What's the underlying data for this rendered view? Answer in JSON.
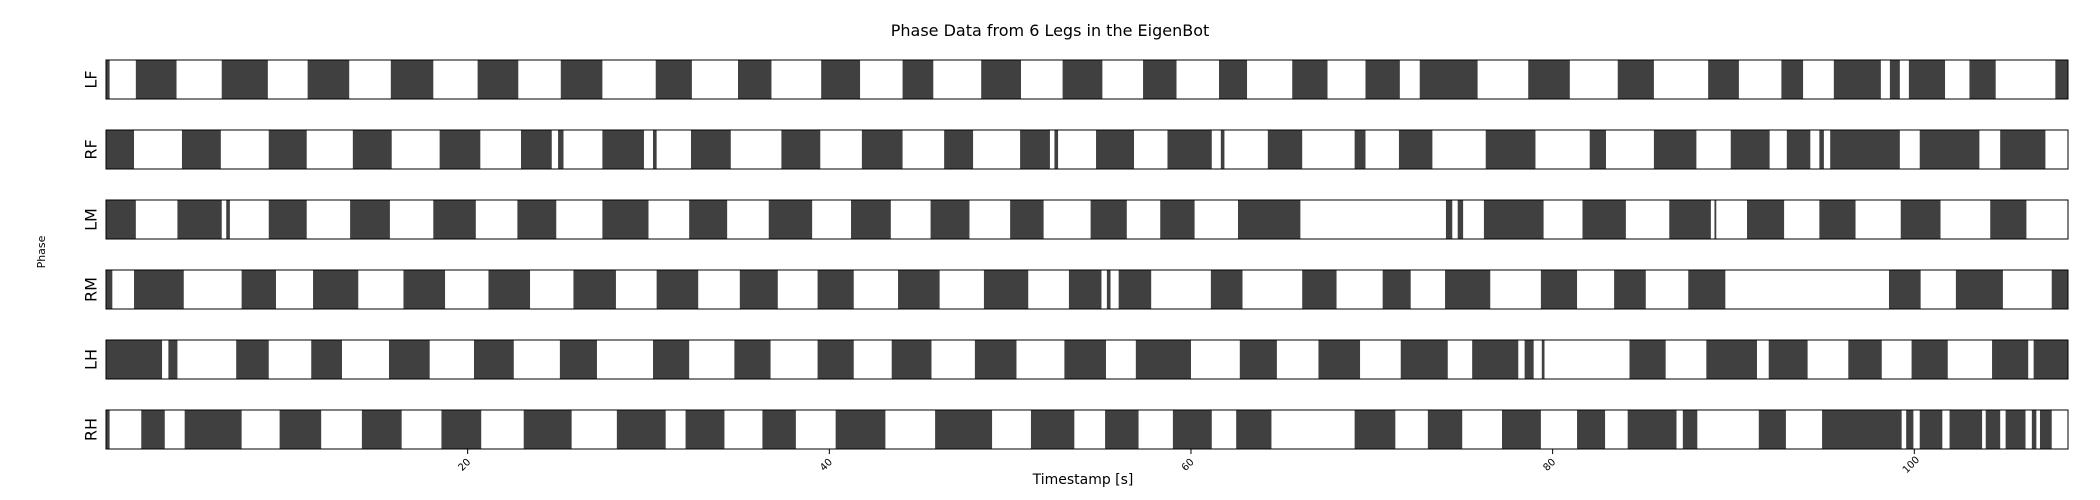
{
  "chart_data": {
    "type": "broken_barh",
    "title": "Phase Data from 6 Legs in the EigenBot",
    "xlabel": "Timestamp [s]",
    "ylabel": "Phase",
    "xlim": [
      0,
      108.5
    ],
    "x_ticks": [
      20,
      40,
      60,
      80,
      100
    ],
    "x_tick_labels": [
      "20",
      "40",
      "60",
      "80",
      "100"
    ],
    "stance_color": "#404040",
    "swing_color": "#ffffff",
    "rows": [
      {
        "label": "LF",
        "stance": [
          [
            0,
            0.2
          ],
          [
            1.65,
            3.9
          ],
          [
            6.4,
            8.95
          ],
          [
            11.15,
            13.45
          ],
          [
            15.75,
            18.1
          ],
          [
            20.55,
            22.8
          ],
          [
            25.15,
            27.45
          ],
          [
            30.4,
            32.4
          ],
          [
            34.95,
            36.8
          ],
          [
            39.55,
            41.7
          ],
          [
            44.05,
            45.75
          ],
          [
            48.4,
            50.6
          ],
          [
            52.9,
            55.1
          ],
          [
            57.35,
            59.2
          ],
          [
            61.55,
            63.1
          ],
          [
            65.6,
            67.55
          ],
          [
            69.65,
            71.55
          ],
          [
            72.65,
            75.85
          ],
          [
            78.65,
            80.95
          ],
          [
            83.6,
            85.6
          ],
          [
            88.6,
            90.3
          ],
          [
            92.65,
            93.85
          ],
          [
            95.55,
            98.15
          ],
          [
            98.65,
            99.2
          ],
          [
            99.7,
            101.7
          ],
          [
            103.05,
            104.5
          ],
          [
            107.8,
            108.5
          ]
        ]
      },
      {
        "label": "RF",
        "stance": [
          [
            0,
            1.55
          ],
          [
            4.2,
            6.35
          ],
          [
            9.0,
            11.1
          ],
          [
            13.65,
            15.8
          ],
          [
            18.45,
            20.7
          ],
          [
            22.95,
            24.65
          ],
          [
            25.0,
            25.3
          ],
          [
            27.45,
            29.75
          ],
          [
            30.25,
            30.45
          ],
          [
            32.35,
            34.55
          ],
          [
            37.35,
            39.5
          ],
          [
            41.8,
            44.05
          ],
          [
            46.35,
            47.95
          ],
          [
            50.55,
            52.2
          ],
          [
            52.45,
            52.65
          ],
          [
            54.75,
            56.85
          ],
          [
            58.7,
            61.15
          ],
          [
            61.65,
            61.85
          ],
          [
            64.25,
            66.15
          ],
          [
            69.05,
            69.65
          ],
          [
            71.5,
            73.35
          ],
          [
            76.3,
            79.05
          ],
          [
            82.05,
            82.95
          ],
          [
            85.6,
            87.95
          ],
          [
            89.85,
            92.0
          ],
          [
            92.95,
            94.25
          ],
          [
            94.75,
            95.0
          ],
          [
            95.35,
            99.2
          ],
          [
            100.3,
            103.6
          ],
          [
            104.75,
            107.25
          ]
        ]
      },
      {
        "label": "LM",
        "stance": [
          [
            0,
            1.65
          ],
          [
            3.95,
            6.4
          ],
          [
            6.65,
            6.85
          ],
          [
            9.0,
            11.1
          ],
          [
            13.5,
            15.7
          ],
          [
            18.1,
            20.45
          ],
          [
            22.75,
            24.9
          ],
          [
            27.45,
            30.0
          ],
          [
            32.25,
            34.35
          ],
          [
            36.65,
            39.05
          ],
          [
            41.2,
            43.4
          ],
          [
            45.6,
            47.75
          ],
          [
            50.0,
            51.85
          ],
          [
            54.45,
            56.45
          ],
          [
            58.3,
            60.2
          ],
          [
            62.6,
            66.05
          ],
          [
            74.1,
            74.45
          ],
          [
            74.75,
            75.05
          ],
          [
            76.2,
            79.5
          ],
          [
            81.65,
            84.05
          ],
          [
            86.45,
            88.75
          ],
          [
            88.95,
            89.05
          ],
          [
            90.75,
            92.8
          ],
          [
            94.75,
            96.75
          ],
          [
            99.25,
            101.45
          ],
          [
            104.2,
            106.2
          ]
        ]
      },
      {
        "label": "RM",
        "stance": [
          [
            0,
            0.35
          ],
          [
            1.55,
            4.3
          ],
          [
            7.5,
            9.4
          ],
          [
            11.45,
            13.95
          ],
          [
            16.45,
            18.75
          ],
          [
            21.15,
            23.45
          ],
          [
            25.85,
            28.2
          ],
          [
            30.45,
            32.75
          ],
          [
            35.05,
            37.15
          ],
          [
            39.35,
            41.35
          ],
          [
            43.8,
            46.1
          ],
          [
            48.55,
            51.0
          ],
          [
            53.25,
            55.05
          ],
          [
            55.35,
            55.55
          ],
          [
            56.0,
            57.8
          ],
          [
            61.1,
            62.85
          ],
          [
            66.15,
            68.05
          ],
          [
            70.6,
            72.15
          ],
          [
            74.05,
            76.55
          ],
          [
            79.35,
            81.35
          ],
          [
            83.4,
            85.15
          ],
          [
            87.5,
            89.55
          ],
          [
            98.6,
            100.35
          ],
          [
            102.3,
            104.9
          ],
          [
            107.6,
            108.5
          ]
        ]
      },
      {
        "label": "LH",
        "stance": [
          [
            0,
            3.1
          ],
          [
            3.45,
            3.95
          ],
          [
            7.2,
            9.0
          ],
          [
            11.35,
            13.05
          ],
          [
            15.65,
            17.9
          ],
          [
            20.35,
            22.55
          ],
          [
            25.1,
            27.15
          ],
          [
            30.25,
            32.25
          ],
          [
            34.75,
            36.75
          ],
          [
            39.35,
            41.35
          ],
          [
            43.45,
            45.65
          ],
          [
            48.05,
            50.35
          ],
          [
            53.0,
            55.3
          ],
          [
            56.95,
            60.0
          ],
          [
            62.7,
            64.75
          ],
          [
            67.05,
            69.35
          ],
          [
            71.6,
            74.2
          ],
          [
            75.55,
            78.1
          ],
          [
            78.45,
            78.95
          ],
          [
            79.4,
            79.55
          ],
          [
            84.25,
            86.25
          ],
          [
            88.5,
            91.3
          ],
          [
            91.95,
            94.1
          ],
          [
            96.35,
            98.2
          ],
          [
            99.85,
            101.85
          ],
          [
            104.3,
            106.3
          ],
          [
            106.6,
            108.5
          ]
        ]
      },
      {
        "label": "RH",
        "stance": [
          [
            0,
            0.2
          ],
          [
            1.95,
            3.25
          ],
          [
            4.35,
            7.5
          ],
          [
            9.6,
            11.9
          ],
          [
            14.15,
            16.35
          ],
          [
            18.55,
            20.75
          ],
          [
            23.1,
            25.75
          ],
          [
            28.25,
            30.95
          ],
          [
            32.05,
            34.2
          ],
          [
            36.3,
            38.15
          ],
          [
            40.35,
            43.1
          ],
          [
            45.85,
            49.0
          ],
          [
            51.15,
            53.55
          ],
          [
            55.25,
            57.1
          ],
          [
            59.0,
            61.15
          ],
          [
            62.5,
            64.45
          ],
          [
            69.05,
            71.3
          ],
          [
            73.1,
            75.0
          ],
          [
            77.2,
            79.35
          ],
          [
            81.35,
            82.9
          ],
          [
            84.15,
            86.85
          ],
          [
            87.2,
            88.0
          ],
          [
            91.4,
            92.9
          ],
          [
            94.9,
            99.3
          ],
          [
            99.55,
            99.95
          ],
          [
            100.3,
            101.55
          ],
          [
            101.95,
            103.75
          ],
          [
            103.95,
            104.75
          ],
          [
            105.05,
            106.15
          ],
          [
            106.5,
            106.75
          ],
          [
            106.95,
            107.6
          ]
        ]
      }
    ]
  }
}
